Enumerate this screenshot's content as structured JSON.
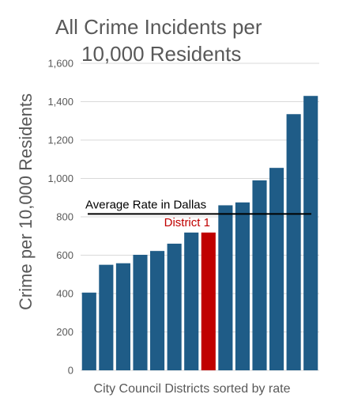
{
  "chart_data": {
    "type": "bar",
    "title_lines": [
      "All Crime Incidents per",
      "10,000 Residents"
    ],
    "ylabel": "Crime per 10,000 Residents",
    "xlabel": "City Council Districts sorted by rate",
    "ylim": [
      0,
      1600
    ],
    "yticks": [
      0,
      200,
      400,
      600,
      800,
      "1,000",
      "1,200",
      "1,400",
      "1,600"
    ],
    "ytick_values": [
      0,
      200,
      400,
      600,
      800,
      1000,
      1200,
      1400,
      1600
    ],
    "grid": true,
    "values": [
      405,
      550,
      558,
      602,
      622,
      660,
      718,
      718,
      860,
      875,
      990,
      1055,
      1335,
      1430
    ],
    "bar_color": "#1f5c87",
    "highlight_index": 7,
    "highlight_color": "#c00000",
    "highlight_label": "District 1",
    "reference_line": {
      "value": 815,
      "label": "Average Rate in Dallas",
      "color": "#000000"
    }
  }
}
